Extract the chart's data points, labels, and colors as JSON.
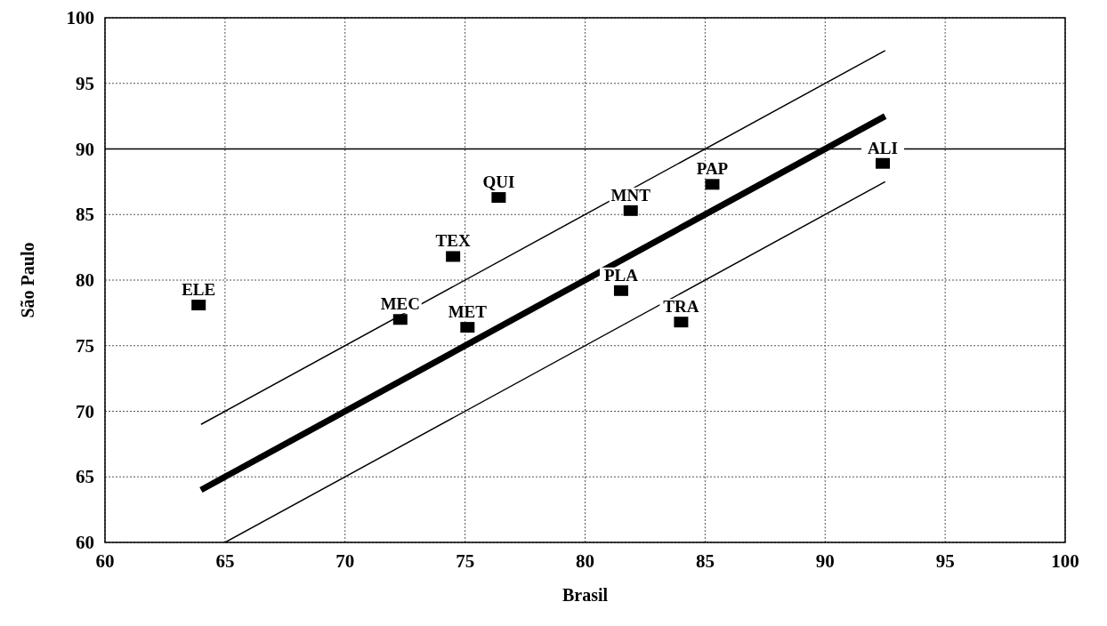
{
  "chart_data": {
    "type": "scatter",
    "xlabel": "Brasil",
    "ylabel": "São Paulo",
    "xlim": [
      60,
      100
    ],
    "xticks": [
      60,
      65,
      70,
      75,
      80,
      85,
      90,
      95,
      100
    ],
    "ylim": [
      60,
      100
    ],
    "yticks": [
      60,
      65,
      70,
      75,
      80,
      85,
      90,
      95,
      100
    ],
    "grid": true,
    "marker": "square",
    "series": [
      {
        "color": "#000000",
        "x": [
          63.9,
          72.3,
          74.5,
          75.1,
          76.4,
          81.9,
          85.3,
          92.4,
          81.5,
          84.0
        ],
        "values": [
          78.1,
          77.0,
          81.8,
          76.4,
          86.3,
          85.3,
          87.3,
          88.9,
          79.2,
          76.8
        ]
      },
      {
        "type": "line",
        "color": "#000000",
        "marker": "none",
        "x": [
          64,
          92.5
        ],
        "values": [
          64,
          92.5
        ]
      },
      {
        "type": "line",
        "color": "#000000",
        "marker": "none",
        "x": [
          64,
          92.5
        ],
        "values": [
          69,
          97.5
        ]
      },
      {
        "type": "line",
        "color": "#000000",
        "marker": "none",
        "x": [
          65,
          92.5
        ],
        "values": [
          60,
          87.5
        ]
      }
    ],
    "ref_lines": [
      {
        "axis": "y",
        "value": 90,
        "color": "#000000",
        "line_style": "solid"
      }
    ],
    "annotations": [
      {
        "text": "ELE",
        "x": 63.9,
        "y": 78.1
      },
      {
        "text": "MEC",
        "x": 72.3,
        "y": 77.0
      },
      {
        "text": "TEX",
        "x": 74.5,
        "y": 81.8
      },
      {
        "text": "MET",
        "x": 75.1,
        "y": 76.4
      },
      {
        "text": "QUI",
        "x": 76.4,
        "y": 86.3
      },
      {
        "text": "MNT",
        "x": 81.9,
        "y": 85.3
      },
      {
        "text": "PAP",
        "x": 85.3,
        "y": 87.3
      },
      {
        "text": "ALI",
        "x": 92.4,
        "y": 88.9
      },
      {
        "text": "PLA",
        "x": 81.5,
        "y": 79.2
      },
      {
        "text": "TRA",
        "x": 84.0,
        "y": 76.8
      }
    ]
  }
}
